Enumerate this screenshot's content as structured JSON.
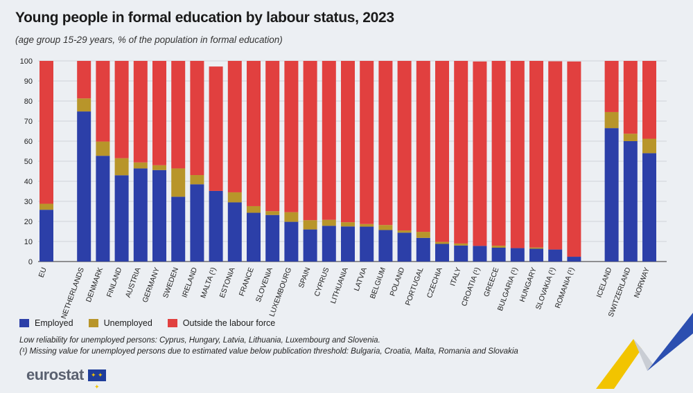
{
  "title": "Young people in formal education by labour status, 2023",
  "subtitle": "(age group 15-29 years, % of the population in formal education)",
  "colors": {
    "employed": "#2c3fa8",
    "unemployed": "#b8952a",
    "outside": "#e1403f"
  },
  "legend": {
    "employed": "Employed",
    "unemployed": "Unemployed",
    "outside": "Outside the labour force"
  },
  "notes": {
    "line1": "Low reliability for unemployed persons: Cyprus, Hungary, Latvia, Lithuania, Luxembourg and Slovenia.",
    "line2": "(¹) Missing value for unemployed persons due to estimated value below publication threshold: Bulgaria, Croatia, Malta, Romania and Slovakia"
  },
  "logo": {
    "text": "eurostat",
    "flag_icon": "eu-flag-icon"
  },
  "chart_data": {
    "type": "bar",
    "stacked": true,
    "ylim": [
      0,
      100
    ],
    "yticks": [
      0,
      10,
      20,
      30,
      40,
      50,
      60,
      70,
      80,
      90,
      100
    ],
    "grid": true,
    "groups": [
      [
        "EU"
      ],
      [
        "NETHERLANDS",
        "DENMARK",
        "FINLAND",
        "AUSTRIA",
        "GERMANY",
        "SWEDEN",
        "IRELAND",
        "MALTA (¹)",
        "ESTONIA",
        "FRANCE",
        "SLOVENIA",
        "LUXEMBOURG",
        "SPAIN",
        "CYPRUS",
        "LITHUANIA",
        "LATVIA",
        "BELGIUM",
        "POLAND",
        "PORTUGAL",
        "CZECHIA",
        "ITALY",
        "CROATIA (¹)",
        "GREECE",
        "BULGARIA (¹)",
        "HUNGARY",
        "SLOVAKIA (¹)",
        "ROMANIA (¹)"
      ],
      [
        "ICELAND",
        "SWITZERLAND",
        "NORWAY"
      ]
    ],
    "categories": [
      "EU",
      "NETHERLANDS",
      "DENMARK",
      "FINLAND",
      "AUSTRIA",
      "GERMANY",
      "SWEDEN",
      "IRELAND",
      "MALTA (¹)",
      "ESTONIA",
      "FRANCE",
      "SLOVENIA",
      "LUXEMBOURG",
      "SPAIN",
      "CYPRUS",
      "LITHUANIA",
      "LATVIA",
      "BELGIUM",
      "POLAND",
      "PORTUGAL",
      "CZECHIA",
      "ITALY",
      "CROATIA (¹)",
      "GREECE",
      "BULGARIA (¹)",
      "HUNGARY",
      "SLOVAKIA (¹)",
      "ROMANIA (¹)",
      "ICELAND",
      "SWITZERLAND",
      "NORWAY"
    ],
    "series": [
      {
        "name": "Employed",
        "values": [
          25.8,
          74.8,
          52.7,
          43.0,
          46.4,
          45.6,
          32.3,
          38.5,
          35.2,
          29.5,
          24.3,
          23.2,
          19.8,
          16.0,
          17.8,
          17.5,
          17.4,
          15.7,
          14.4,
          11.8,
          8.8,
          8.0,
          7.8,
          6.9,
          6.7,
          6.4,
          6.0,
          2.4,
          66.5,
          60.0,
          54.0
        ]
      },
      {
        "name": "Unemployed",
        "values": [
          3.0,
          6.5,
          7.1,
          8.5,
          3.0,
          2.4,
          14.1,
          4.6,
          0,
          5.0,
          3.3,
          1.9,
          4.8,
          4.6,
          3.0,
          2.1,
          1.3,
          2.5,
          1.1,
          3.0,
          1.0,
          1.0,
          0,
          1.0,
          0,
          0.6,
          0,
          0,
          8.0,
          3.7,
          7.2
        ]
      },
      {
        "name": "Outside the labour force",
        "values": [
          71.2,
          18.7,
          40.2,
          48.5,
          50.6,
          52.0,
          53.6,
          56.9,
          62.0,
          65.5,
          72.4,
          74.9,
          75.4,
          79.4,
          79.2,
          80.4,
          81.3,
          81.8,
          84.5,
          85.2,
          90.2,
          91.0,
          91.9,
          92.1,
          93.3,
          93.0,
          93.8,
          97.3,
          25.5,
          36.3,
          38.8
        ]
      }
    ]
  }
}
